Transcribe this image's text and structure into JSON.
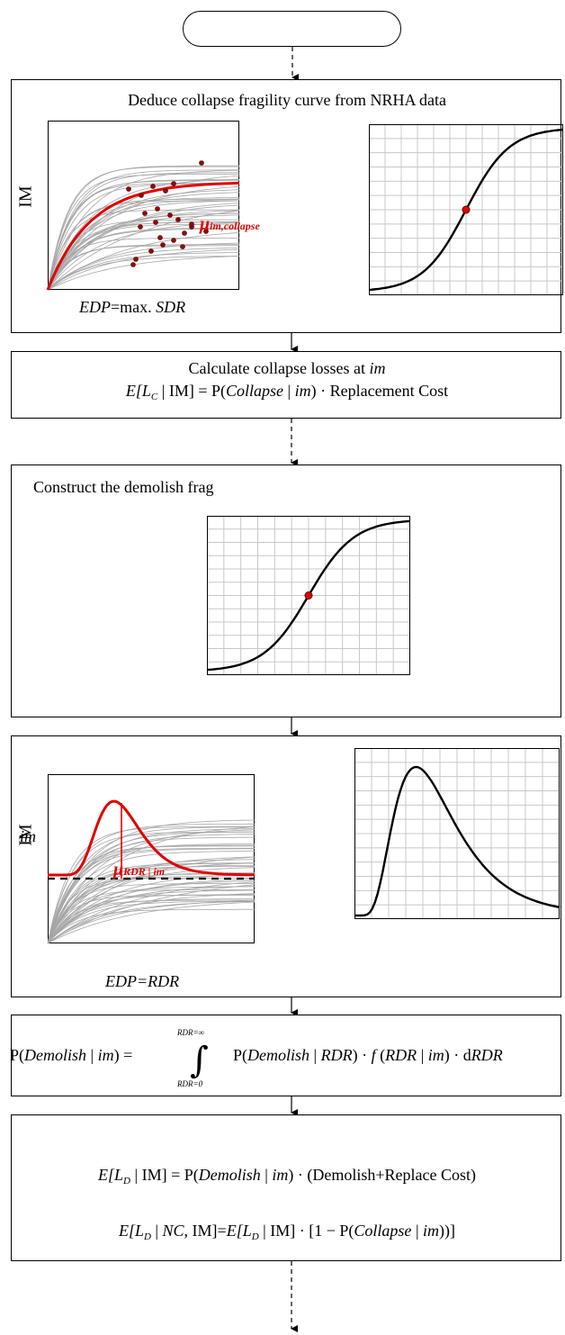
{
  "box1": {
    "title": "Deduce collapse fragility  curve from NRHA data",
    "y_label": "IM",
    "x_label_var": "EDP",
    "x_label_eq": "=max. ",
    "x_label_q": "SDR",
    "median_mu": "μ",
    "median_sub": "im,collapse"
  },
  "box2": {
    "title_pre": "Calculate collapse losses at ",
    "title_var": "im",
    "eq_E": "E",
    "eq_L": "[L",
    "eq_L_sub": "C",
    "eq_rest1": " | IM] = P(",
    "eq_collapse": "Collapse",
    "eq_bar": " | ",
    "eq_im": "im",
    "eq_rest2": ") · Replacement Cost"
  },
  "box3": {
    "title": "Construct the demolish frag"
  },
  "box4": {
    "y_label": "IM",
    "im_label": "im",
    "x_label": "EDP=RDR",
    "median_mu": "μ",
    "median_sub": "RDR | im"
  },
  "box5": {
    "lhs_p": "P(",
    "lhs_demolish": "Demolish",
    "lhs_bar": " | ",
    "lhs_im": "im",
    "lhs_close": ") =",
    "upper": "RDR=∞",
    "lower": "RDR=0",
    "integral": "∫",
    "rhs_p": "P(",
    "rhs_demolish": "Demolish",
    "rhs_bar": " | ",
    "rhs_rdr": "RDR",
    "rhs_mid": ") · ",
    "rhs_f": "f",
    "rhs_open": " (",
    "rhs_rdr2": "RDR",
    "rhs_bar2": " | ",
    "rhs_im": "im",
    "rhs_end": ") · d",
    "rhs_drdr": "RDR"
  },
  "box6": {
    "eq1_E": "E",
    "eq1_L": "[L",
    "eq1_sub": "D",
    "eq1_mid": " | IM] = P(",
    "eq1_demolish": "Demolish",
    "eq1_bar": " | ",
    "eq1_im": "im",
    "eq1_rest": ") · (Demolish+Replace Cost)",
    "eq2_E": "E",
    "eq2_L": "[L",
    "eq2_sub": "D",
    "eq2_bar": " | ",
    "eq2_nc": "NC",
    "eq2_mid": ", IM]=",
    "eq2_E2": "E",
    "eq2_L2": "[L",
    "eq2_sub2": "D",
    "eq2_mid2": " | IM] · [1 − P(",
    "eq2_collapse": "Collapse",
    "eq2_bar2": " | ",
    "eq2_im": "im",
    "eq2_end": "))]"
  },
  "colors": {
    "red": "#e00000",
    "grid": "#c8c8c8",
    "gray_curve": "#a6a6a6",
    "point": "#a00000"
  }
}
